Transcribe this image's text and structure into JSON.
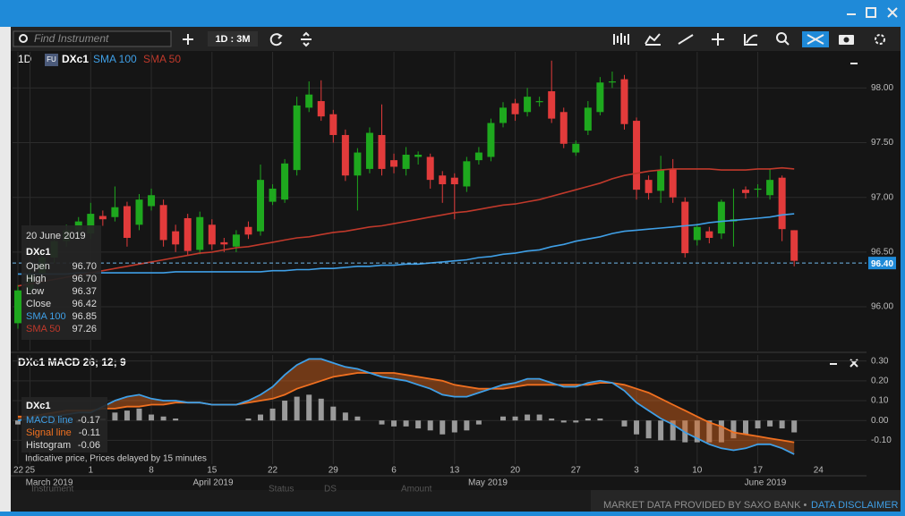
{
  "toolbar": {
    "search_placeholder": "Find Instrument",
    "period": "1D : 3M"
  },
  "chart_header": {
    "interval": "1D",
    "badge": "FU",
    "instrument": "DXc1"
  },
  "tooltip": {
    "date": "20 June 2019",
    "instrument": "DXc1",
    "rows": [
      [
        "Open",
        "96.70"
      ],
      [
        "High",
        "96.70"
      ],
      [
        "Low",
        "96.37"
      ],
      [
        "Close",
        "96.42"
      ],
      [
        "SMA 100",
        "96.85"
      ],
      [
        "SMA 50",
        "97.26"
      ]
    ]
  },
  "macd_header": "DXc1 MACD 26; 12; 9",
  "macd_tooltip": {
    "instrument": "DXc1"
  },
  "notice": "Indicative price, Prices delayed by 15 minutes",
  "footer": {
    "text": "MARKET DATA PROVIDED BY SAXO BANK •",
    "link": "DATA DISCLAIMER"
  },
  "background_labels": [
    "Instrument",
    "Status",
    "DS",
    "Amount"
  ],
  "chart_data": [
    {
      "type": "candlestick",
      "categories": [
        "22",
        "25",
        null,
        null,
        null,
        null,
        "1",
        null,
        null,
        null,
        null,
        "8",
        null,
        null,
        null,
        null,
        "15",
        null,
        null,
        null,
        null,
        "22",
        null,
        null,
        null,
        null,
        "29",
        null,
        null,
        null,
        null,
        "6",
        null,
        null,
        null,
        null,
        "13",
        null,
        null,
        null,
        null,
        "20",
        null,
        null,
        null,
        null,
        "27",
        null,
        null,
        null,
        null,
        "3",
        null,
        null,
        null,
        null,
        "10",
        null,
        null,
        null,
        null,
        "17",
        null,
        null,
        null
      ],
      "extra_categories": [
        "24"
      ],
      "month_labels": [
        "March 2019",
        "April 2019",
        "May 2019",
        "June 2019"
      ],
      "open": [
        95.85,
        96.15,
        96.3,
        96.45,
        96.6,
        96.7,
        96.67,
        96.83,
        96.82,
        96.92,
        96.75,
        96.92,
        96.93,
        96.69,
        96.81,
        96.52,
        96.75,
        96.59,
        96.55,
        96.73,
        96.69,
        96.96,
        96.98,
        97.25,
        97.82,
        97.88,
        97.76,
        97.57,
        97.2,
        97.26,
        97.57,
        97.34,
        97.26,
        97.37,
        97.37,
        97.2,
        97.18,
        97.1,
        97.34,
        97.37,
        97.68,
        97.86,
        97.78,
        97.87,
        97.97,
        97.78,
        97.41,
        97.61,
        97.78,
        98.05,
        98.08,
        97.7,
        97.16,
        97.06,
        97.26,
        96.96,
        96.61,
        96.69,
        96.67,
        96.78,
        97.07,
        97.07,
        97.02,
        97.18,
        96.7
      ],
      "high": [
        96.2,
        96.35,
        96.5,
        96.65,
        96.75,
        96.82,
        96.95,
        96.88,
        97.1,
        96.96,
        97.03,
        97.08,
        96.98,
        96.75,
        96.85,
        96.87,
        96.8,
        96.63,
        96.7,
        96.78,
        97.3,
        97.12,
        97.35,
        97.92,
        98.06,
        98.07,
        97.8,
        97.62,
        97.45,
        97.64,
        97.85,
        97.4,
        97.46,
        97.42,
        97.4,
        97.24,
        97.22,
        97.37,
        97.46,
        97.72,
        97.87,
        97.9,
        98.0,
        97.92,
        98.25,
        97.82,
        97.52,
        97.88,
        98.1,
        98.15,
        98.12,
        97.73,
        97.2,
        97.38,
        97.35,
        97.0,
        96.76,
        96.73,
        96.98,
        97.08,
        97.1,
        97.12,
        97.26,
        97.2,
        96.7
      ],
      "low": [
        95.8,
        96.1,
        96.25,
        96.4,
        96.55,
        96.65,
        96.62,
        96.74,
        96.78,
        96.55,
        96.7,
        96.88,
        96.55,
        96.5,
        96.47,
        96.48,
        96.52,
        96.5,
        96.5,
        96.62,
        96.65,
        96.93,
        96.95,
        97.2,
        97.78,
        97.7,
        97.5,
        97.15,
        96.88,
        97.22,
        97.2,
        97.22,
        97.2,
        97.3,
        97.08,
        96.95,
        96.8,
        97.05,
        97.3,
        97.33,
        97.64,
        97.7,
        97.74,
        97.83,
        97.68,
        97.45,
        97.38,
        97.57,
        97.75,
        98.0,
        97.62,
        96.98,
        96.98,
        96.95,
        96.95,
        96.45,
        96.56,
        96.58,
        96.62,
        96.55,
        96.99,
        97.0,
        96.98,
        96.6,
        96.37
      ],
      "close": [
        96.15,
        96.3,
        96.45,
        96.6,
        96.7,
        96.78,
        96.85,
        96.8,
        96.91,
        96.63,
        96.98,
        97.02,
        96.61,
        96.57,
        96.51,
        96.82,
        96.57,
        96.57,
        96.66,
        96.66,
        97.16,
        97.08,
        97.31,
        97.84,
        97.94,
        97.74,
        97.57,
        97.2,
        97.41,
        97.59,
        97.26,
        97.28,
        97.39,
        97.39,
        97.16,
        97.12,
        97.12,
        97.33,
        97.41,
        97.68,
        97.82,
        97.76,
        97.92,
        97.88,
        97.72,
        97.49,
        97.49,
        97.82,
        98.05,
        98.06,
        97.67,
        97.07,
        97.04,
        97.25,
        97.0,
        96.49,
        96.73,
        96.63,
        96.96,
        96.8,
        97.04,
        97.08,
        97.16,
        96.71,
        96.42
      ],
      "up_color": "#1ea81e",
      "down_color": "#e23b3b",
      "series": [
        {
          "name": "SMA 100",
          "color": "#3f9fe6",
          "values": [
            96.3,
            96.3,
            96.3,
            96.3,
            96.3,
            96.31,
            96.31,
            96.31,
            96.31,
            96.31,
            96.31,
            96.31,
            96.31,
            96.32,
            96.32,
            96.32,
            96.32,
            96.32,
            96.32,
            96.32,
            96.32,
            96.33,
            96.33,
            96.34,
            96.34,
            96.35,
            96.35,
            96.36,
            96.37,
            96.37,
            96.38,
            96.38,
            96.39,
            96.39,
            96.4,
            96.41,
            96.42,
            96.43,
            96.45,
            96.46,
            96.48,
            96.49,
            96.51,
            96.52,
            96.55,
            96.57,
            96.6,
            96.62,
            96.64,
            96.67,
            96.69,
            96.7,
            96.71,
            96.72,
            96.73,
            96.74,
            96.75,
            96.77,
            96.78,
            96.79,
            96.8,
            96.81,
            96.82,
            96.84,
            96.85
          ]
        },
        {
          "name": "SMA 50",
          "color": "#c0392b",
          "values": [
            96.19,
            96.21,
            96.23,
            96.25,
            96.27,
            96.29,
            96.31,
            96.33,
            96.35,
            96.37,
            96.39,
            96.41,
            96.43,
            96.45,
            96.47,
            96.49,
            96.5,
            96.52,
            96.54,
            96.55,
            96.57,
            96.59,
            96.61,
            96.63,
            96.64,
            96.66,
            96.68,
            96.69,
            96.71,
            96.73,
            96.74,
            96.76,
            96.78,
            96.8,
            96.82,
            96.84,
            96.86,
            96.87,
            96.89,
            96.91,
            96.93,
            96.94,
            96.96,
            96.98,
            97.01,
            97.04,
            97.07,
            97.1,
            97.13,
            97.17,
            97.2,
            97.22,
            97.24,
            97.25,
            97.26,
            97.26,
            97.26,
            97.26,
            97.25,
            97.25,
            97.25,
            97.26,
            97.26,
            97.27,
            97.26
          ]
        }
      ],
      "last_price": {
        "value": 96.4,
        "label": "96.40"
      },
      "ylim": [
        95.6,
        98.33
      ],
      "yticks": [
        {
          "value": 96,
          "label": "96.00"
        },
        {
          "value": 96.5,
          "label": "96.50"
        },
        {
          "value": 97,
          "label": "97.00"
        },
        {
          "value": 97.5,
          "label": "97.50"
        },
        {
          "value": 98,
          "label": "98.00"
        }
      ],
      "grid": true
    },
    {
      "type": "macd",
      "series": [
        {
          "name": "MACD line",
          "color": "#3f9fe6",
          "values": [
            0.0,
            0.01,
            0.02,
            0.02,
            0.03,
            0.04,
            0.04,
            0.07,
            0.1,
            0.12,
            0.13,
            0.11,
            0.1,
            0.1,
            0.09,
            0.09,
            0.08,
            0.08,
            0.08,
            0.1,
            0.13,
            0.17,
            0.23,
            0.28,
            0.31,
            0.31,
            0.29,
            0.27,
            0.26,
            0.24,
            0.22,
            0.21,
            0.2,
            0.18,
            0.16,
            0.13,
            0.12,
            0.12,
            0.14,
            0.16,
            0.18,
            0.19,
            0.21,
            0.21,
            0.19,
            0.17,
            0.17,
            0.19,
            0.2,
            0.19,
            0.15,
            0.09,
            0.05,
            0.01,
            -0.02,
            -0.06,
            -0.09,
            -0.12,
            -0.14,
            -0.15,
            -0.14,
            -0.12,
            -0.12,
            -0.14,
            -0.17
          ]
        },
        {
          "name": "Signal line",
          "color": "#f07020",
          "values": [
            0.02,
            0.02,
            0.03,
            0.04,
            0.05,
            0.05,
            0.05,
            0.06,
            0.06,
            0.07,
            0.07,
            0.08,
            0.08,
            0.09,
            0.09,
            0.09,
            0.08,
            0.08,
            0.08,
            0.09,
            0.1,
            0.11,
            0.13,
            0.16,
            0.18,
            0.2,
            0.22,
            0.23,
            0.24,
            0.24,
            0.24,
            0.24,
            0.23,
            0.22,
            0.21,
            0.2,
            0.18,
            0.17,
            0.16,
            0.16,
            0.16,
            0.17,
            0.18,
            0.18,
            0.18,
            0.18,
            0.18,
            0.18,
            0.19,
            0.19,
            0.18,
            0.16,
            0.14,
            0.11,
            0.08,
            0.05,
            0.02,
            -0.01,
            -0.03,
            -0.06,
            -0.07,
            -0.08,
            -0.09,
            -0.1,
            -0.11
          ]
        },
        {
          "name": "Histogram",
          "color": "#9a9a9a",
          "values": [
            -0.02,
            -0.01,
            -0.01,
            -0.02,
            -0.02,
            -0.01,
            -0.01,
            0.01,
            0.04,
            0.05,
            0.06,
            0.03,
            0.02,
            0.01,
            0.0,
            0.0,
            0.0,
            0.0,
            0.0,
            0.01,
            0.03,
            0.06,
            0.1,
            0.12,
            0.13,
            0.11,
            0.07,
            0.04,
            0.02,
            0.0,
            -0.02,
            -0.03,
            -0.03,
            -0.04,
            -0.05,
            -0.07,
            -0.06,
            -0.05,
            -0.02,
            0.0,
            0.02,
            0.02,
            0.03,
            0.03,
            0.01,
            -0.01,
            -0.01,
            0.01,
            0.01,
            0.0,
            -0.03,
            -0.07,
            -0.09,
            -0.1,
            -0.1,
            -0.11,
            -0.11,
            -0.11,
            -0.11,
            -0.09,
            -0.07,
            -0.04,
            -0.03,
            -0.04,
            -0.06
          ]
        }
      ],
      "ylim": [
        -0.22,
        0.33
      ],
      "yticks": [
        {
          "value": -0.1,
          "label": "-0.10"
        },
        {
          "value": 0,
          "label": "0.00"
        },
        {
          "value": 0.1,
          "label": "0.10"
        },
        {
          "value": 0.2,
          "label": "0.20"
        },
        {
          "value": 0.3,
          "label": "0.30"
        }
      ],
      "grid": true
    }
  ]
}
